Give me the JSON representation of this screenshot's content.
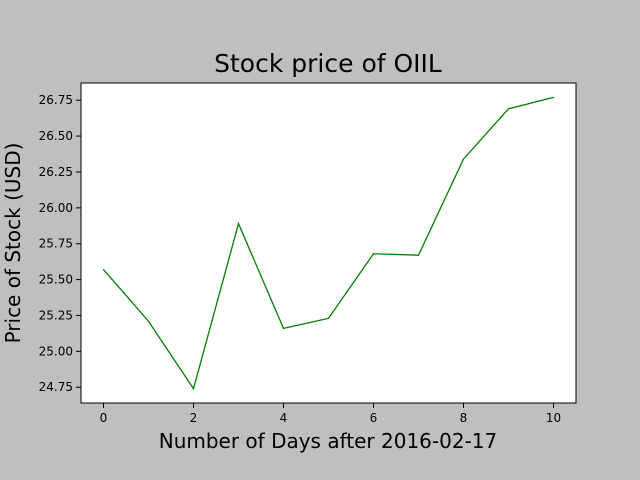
{
  "chart_data": {
    "type": "line",
    "title": "Stock price of OIIL",
    "xlabel": "Number of Days after 2016-02-17",
    "ylabel": "Price of Stock (USD)",
    "x": [
      0,
      1,
      2,
      3,
      4,
      5,
      6,
      7,
      8,
      9,
      10
    ],
    "series": [
      {
        "name": "OIIL",
        "color": "#008000",
        "values": [
          25.57,
          25.21,
          24.74,
          25.89,
          25.16,
          25.23,
          25.68,
          25.67,
          26.34,
          26.69,
          26.77
        ]
      }
    ],
    "xlim": [
      -0.5,
      10.5
    ],
    "ylim": [
      24.64,
      26.87
    ],
    "xticks": [
      0,
      2,
      4,
      6,
      8,
      10
    ],
    "yticks": [
      24.75,
      25.0,
      25.25,
      25.5,
      25.75,
      26.0,
      26.25,
      26.5,
      26.75
    ],
    "ytick_labels": [
      "24.75",
      "25.00",
      "25.25",
      "25.50",
      "25.75",
      "26.00",
      "26.25",
      "26.50",
      "26.75"
    ],
    "grid": false,
    "legend": "none",
    "background_color": "#bfbfbf",
    "plot_background_color": "#ffffff"
  }
}
